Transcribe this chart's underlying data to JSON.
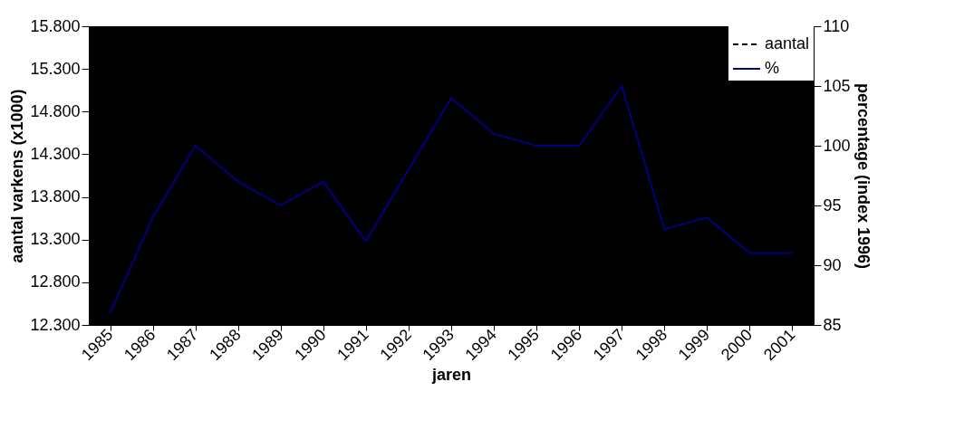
{
  "chart_data": {
    "type": "line",
    "xlabel": "jaren",
    "ylabel": "aantal varkens (x1000)",
    "y2label": "percentage (index 1996)",
    "categories": [
      "1985",
      "1986",
      "1987",
      "1988",
      "1989",
      "1990",
      "1991",
      "1992",
      "1993",
      "1994",
      "1995",
      "1996",
      "1997",
      "1998",
      "1999",
      "2000",
      "2001"
    ],
    "series": [
      {
        "name": "aantal",
        "color": "#000000",
        "line_style": "dashed",
        "axis": "y",
        "values": [
          null,
          null,
          null,
          null,
          null,
          null,
          null,
          null,
          null,
          null,
          null,
          null,
          null,
          null,
          null,
          null,
          null
        ]
      },
      {
        "name": "%",
        "color": "#000080",
        "line_style": "solid",
        "axis": "y2",
        "values": [
          86,
          94,
          100,
          97,
          95,
          97,
          92,
          98,
          104,
          101,
          100,
          100,
          105,
          93,
          94,
          91,
          91
        ]
      }
    ],
    "ylim": [
      12300,
      15800
    ],
    "yticks": [
      {
        "value": 12300,
        "label": "12.300"
      },
      {
        "value": 12800,
        "label": "12.800"
      },
      {
        "value": 13300,
        "label": "13.300"
      },
      {
        "value": 13800,
        "label": "13.800"
      },
      {
        "value": 14300,
        "label": "14.300"
      },
      {
        "value": 14800,
        "label": "14.800"
      },
      {
        "value": 15300,
        "label": "15.300"
      },
      {
        "value": 15800,
        "label": "15.800"
      }
    ],
    "y2lim": [
      85,
      110
    ],
    "y2ticks": [
      85,
      90,
      95,
      100,
      105,
      110
    ],
    "legend": "top right"
  }
}
